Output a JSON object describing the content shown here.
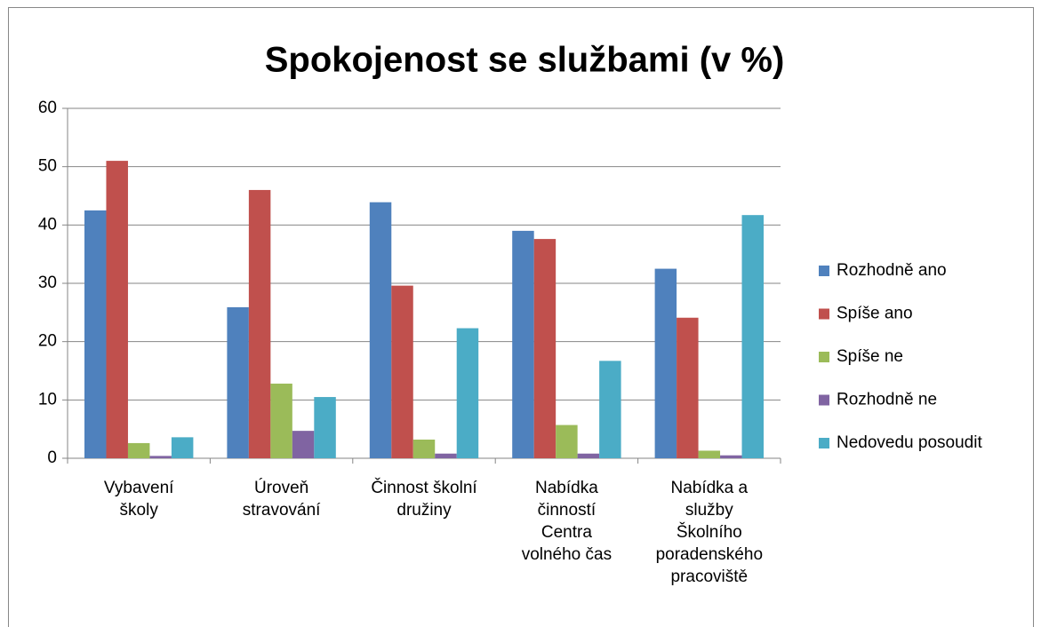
{
  "chart_data": {
    "type": "bar",
    "title": "Spokojenost se službami (v %)",
    "categories": [
      "Vybavení\nškoly",
      "Úroveň\nstravování",
      "Činnost školní\ndružiny",
      "Nabídka\nčinností\nCentra\nvolného čas",
      "Nabídka a\nslužby\nŠkolního\nporadenského\npracoviště"
    ],
    "series": [
      {
        "name": "Rozhodně ano",
        "color": "#4f81bd",
        "values": [
          42.5,
          25.9,
          43.9,
          39,
          32.5
        ]
      },
      {
        "name": "Spíše ano",
        "color": "#c0504d",
        "values": [
          51,
          46,
          29.6,
          37.6,
          24.1
        ]
      },
      {
        "name": "Spíše ne",
        "color": "#9bbb59",
        "values": [
          2.6,
          12.8,
          3.2,
          5.7,
          1.3
        ]
      },
      {
        "name": "Rozhodně ne",
        "color": "#8064a2",
        "values": [
          0.4,
          4.7,
          0.8,
          0.8,
          0.5
        ]
      },
      {
        "name": "Nedovedu posoudit",
        "color": "#4bacc6",
        "values": [
          3.6,
          10.5,
          22.3,
          16.7,
          41.7
        ]
      }
    ],
    "ylim": [
      0,
      60
    ],
    "yticks": [
      0,
      10,
      20,
      30,
      40,
      50,
      60
    ],
    "grid": true,
    "legend": "right"
  }
}
